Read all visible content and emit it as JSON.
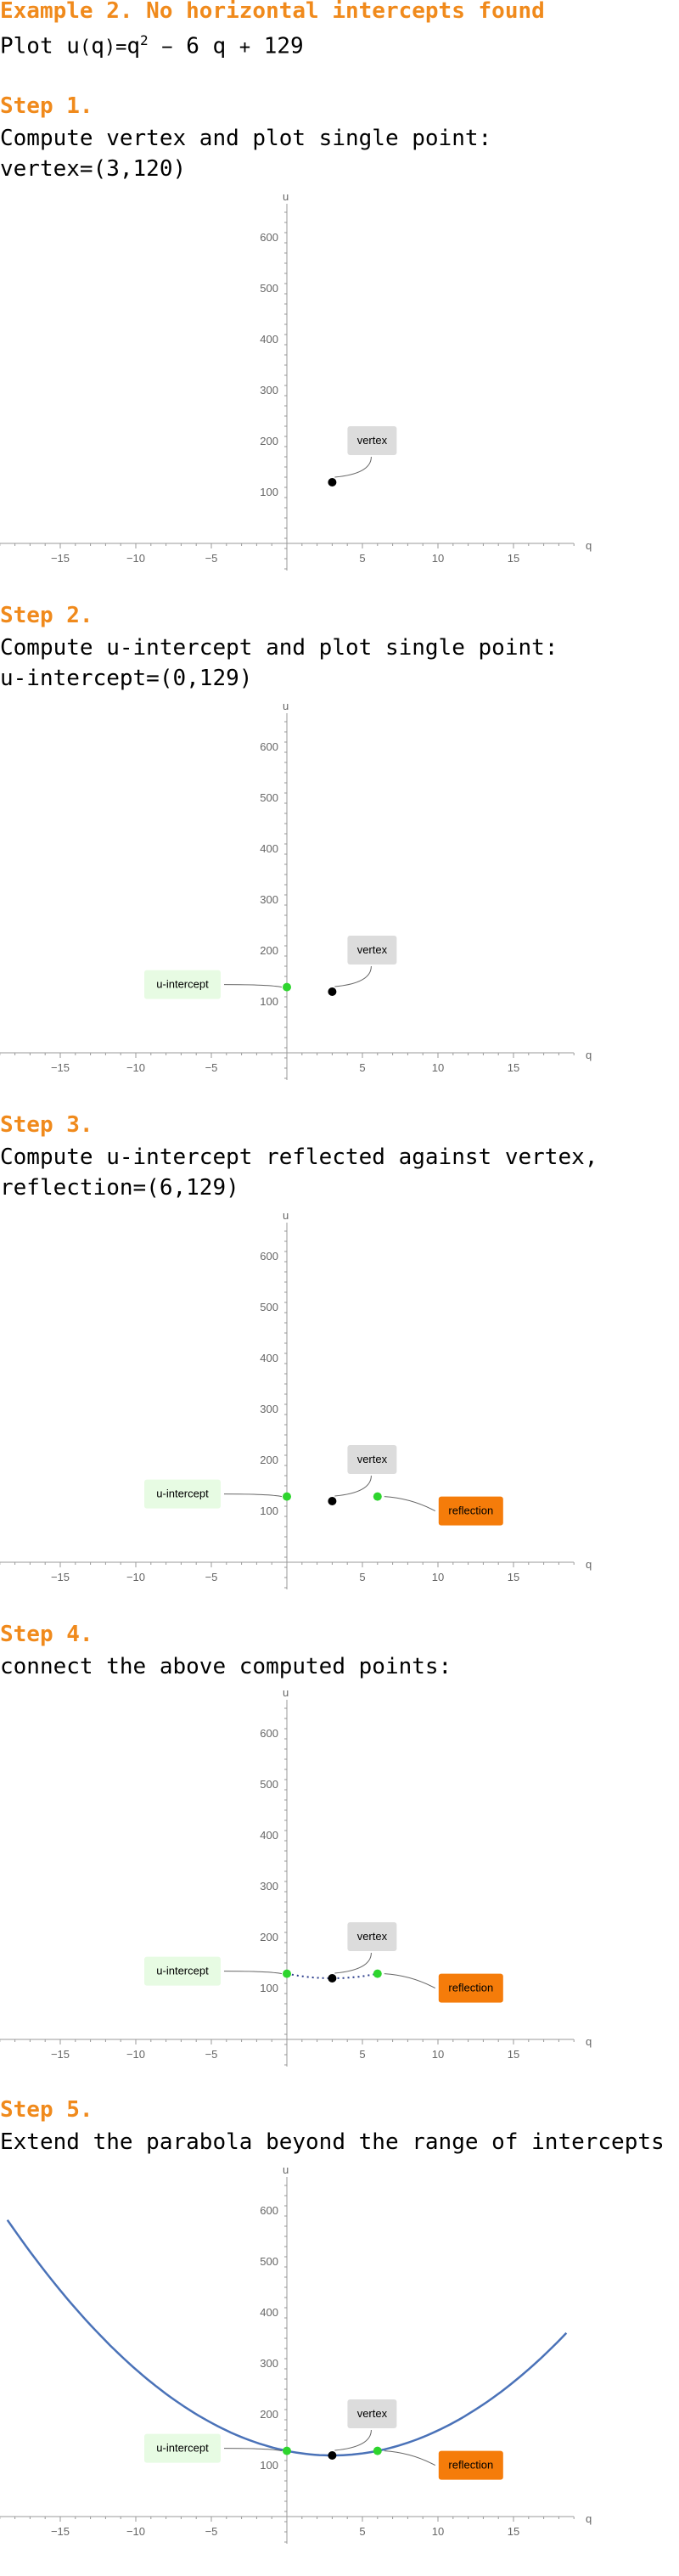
{
  "header": {
    "title": "Example 2. No horizontal intercepts found",
    "formula": {
      "plot_word": "Plot",
      "fname": "u",
      "arg": "q",
      "expr_base": "q",
      "expr_exp": "2",
      "expr_rest_a": "6 q",
      "expr_rest_b": "129"
    }
  },
  "steps": [
    {
      "label": "Step 1.",
      "lines": [
        "Compute vertex and plot single point:",
        "vertex=(3,120)"
      ]
    },
    {
      "label": "Step 2.",
      "lines": [
        "Compute u-intercept and plot single point:",
        "u-intercept=(0,129)"
      ]
    },
    {
      "label": "Step 3.",
      "lines": [
        "Compute u-intercept reflected against vertex,",
        "reflection=(6,129)"
      ]
    },
    {
      "label": "Step 4.",
      "lines": [
        "connect the above computed points:"
      ]
    },
    {
      "label": "Step 5.",
      "lines": [
        "Extend the parabola beyond the range of intercepts"
      ]
    }
  ],
  "labels": {
    "vertex": "vertex",
    "intercept": "u-intercept",
    "reflection": "reflection"
  },
  "colors": {
    "accent": "#f08a1c",
    "point_green": "#2ed52e",
    "point_black": "#000000",
    "curve": "#4a72b8",
    "reflection_bg": "#f57c0a",
    "intercept_bg": "#e7fbe3",
    "vertex_bg": "#dcdcdc"
  },
  "chart_data": [
    {
      "type": "scatter",
      "xlabel": "q",
      "ylabel": "u",
      "xlim": [
        -19,
        19
      ],
      "ylim": [
        -50,
        680
      ],
      "xticks": [
        -15,
        -10,
        -5,
        5,
        10,
        15
      ],
      "yticks": [
        100,
        200,
        300,
        400,
        500,
        600
      ],
      "points": [
        {
          "name": "vertex",
          "x": 3,
          "y": 120
        }
      ],
      "curve": "none"
    },
    {
      "type": "scatter",
      "xlabel": "q",
      "ylabel": "u",
      "xlim": [
        -19,
        19
      ],
      "ylim": [
        -50,
        680
      ],
      "xticks": [
        -15,
        -10,
        -5,
        5,
        10,
        15
      ],
      "yticks": [
        100,
        200,
        300,
        400,
        500,
        600
      ],
      "points": [
        {
          "name": "vertex",
          "x": 3,
          "y": 120
        },
        {
          "name": "u-intercept",
          "x": 0,
          "y": 129
        }
      ],
      "curve": "none"
    },
    {
      "type": "scatter",
      "xlabel": "q",
      "ylabel": "u",
      "xlim": [
        -19,
        19
      ],
      "ylim": [
        -50,
        680
      ],
      "xticks": [
        -15,
        -10,
        -5,
        5,
        10,
        15
      ],
      "yticks": [
        100,
        200,
        300,
        400,
        500,
        600
      ],
      "points": [
        {
          "name": "vertex",
          "x": 3,
          "y": 120
        },
        {
          "name": "u-intercept",
          "x": 0,
          "y": 129
        },
        {
          "name": "reflection",
          "x": 6,
          "y": 129
        }
      ],
      "curve": "none"
    },
    {
      "type": "line",
      "xlabel": "q",
      "ylabel": "u",
      "xlim": [
        -19,
        19
      ],
      "ylim": [
        -50,
        680
      ],
      "xticks": [
        -15,
        -10,
        -5,
        5,
        10,
        15
      ],
      "yticks": [
        100,
        200,
        300,
        400,
        500,
        600
      ],
      "points": [
        {
          "name": "vertex",
          "x": 3,
          "y": 120
        },
        {
          "name": "u-intercept",
          "x": 0,
          "y": 129
        },
        {
          "name": "reflection",
          "x": 6,
          "y": 129
        }
      ],
      "curve": "dotted",
      "curve_domain": [
        0,
        6
      ],
      "function": {
        "a": 1,
        "b": -6,
        "c": 129
      }
    },
    {
      "type": "line",
      "xlabel": "q",
      "ylabel": "u",
      "xlim": [
        -19,
        19
      ],
      "ylim": [
        -50,
        680
      ],
      "xticks": [
        -15,
        -10,
        -5,
        5,
        10,
        15
      ],
      "yticks": [
        100,
        200,
        300,
        400,
        500,
        600
      ],
      "points": [
        {
          "name": "vertex",
          "x": 3,
          "y": 120
        },
        {
          "name": "u-intercept",
          "x": 0,
          "y": 129
        },
        {
          "name": "reflection",
          "x": 6,
          "y": 129
        }
      ],
      "curve": "solid",
      "curve_domain": [
        -18.5,
        18.5
      ],
      "function": {
        "a": 1,
        "b": -6,
        "c": 129
      }
    }
  ]
}
